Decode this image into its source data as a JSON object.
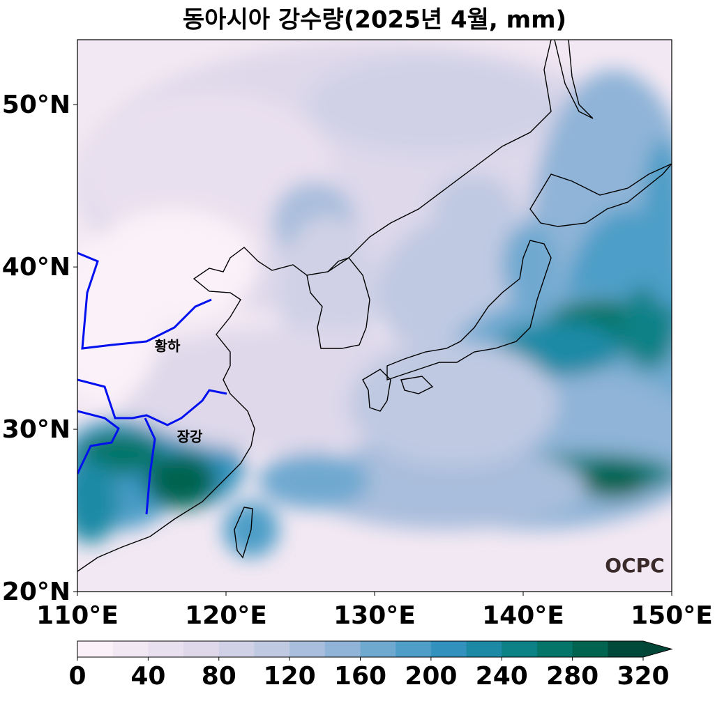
{
  "title": "동아시아 강수량(2025년 4월, mm)",
  "map": {
    "xlim": [
      110,
      150
    ],
    "ylim": [
      20,
      54
    ],
    "xticks": [
      {
        "value": 110,
        "label": "110°E"
      },
      {
        "value": 120,
        "label": "120°E"
      },
      {
        "value": 130,
        "label": "130°E"
      },
      {
        "value": 140,
        "label": "140°E"
      },
      {
        "value": 150,
        "label": "150°E"
      }
    ],
    "yticks": [
      {
        "value": 20,
        "label": "20°N"
      },
      {
        "value": 30,
        "label": "30°N"
      },
      {
        "value": 40,
        "label": "40°N"
      },
      {
        "value": 50,
        "label": "50°N"
      }
    ]
  },
  "colorbar": {
    "levels": [
      0,
      20,
      40,
      60,
      80,
      100,
      120,
      140,
      160,
      180,
      200,
      220,
      240,
      260,
      280,
      300,
      320
    ],
    "colors": [
      "#fbf1f8",
      "#f2e8f3",
      "#e9e0ef",
      "#ded8ea",
      "#d0d1e6",
      "#bfc9e2",
      "#a9bedc",
      "#8fb4d7",
      "#70a9d0",
      "#4e9ec8",
      "#3392bd",
      "#1d8aa5",
      "#0c8186",
      "#047568",
      "#016450",
      "#014a3b"
    ],
    "extend_color": "#014636",
    "ticks": [
      0,
      40,
      80,
      120,
      160,
      200,
      240,
      280,
      320
    ]
  },
  "labels": {
    "yellow_river": "황하",
    "yangtze": "장강"
  },
  "logo": "OCPC"
}
